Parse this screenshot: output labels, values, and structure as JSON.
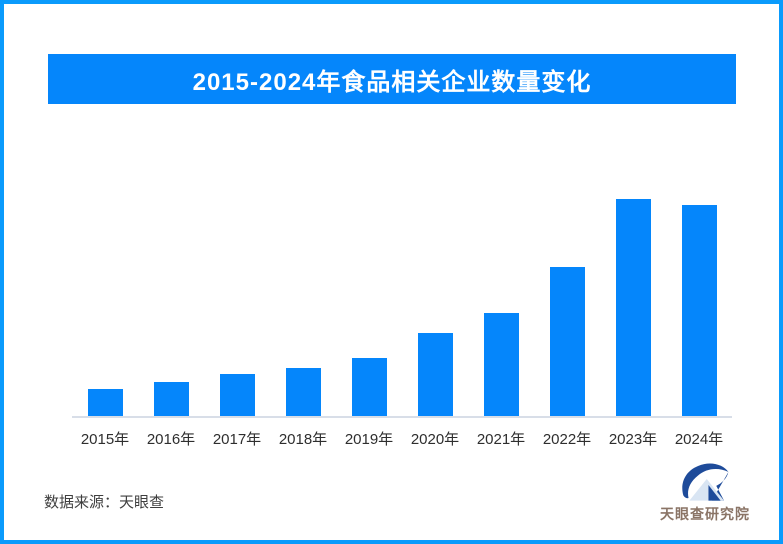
{
  "page": {
    "border_color": "#0a9bfc",
    "background": "#ffffff"
  },
  "header": {
    "title": "2015-2024年食品相关企业数量变化",
    "banner_color": "#0586fb",
    "title_color": "#ffffff"
  },
  "chart_data": {
    "type": "bar",
    "title": "2015-2024年食品相关企业数量变化",
    "categories": [
      "2015年",
      "2016年",
      "2017年",
      "2018年",
      "2019年",
      "2020年",
      "2021年",
      "2022年",
      "2023年",
      "2024年"
    ],
    "values": [
      12.8,
      16.1,
      19.7,
      22.5,
      27.1,
      38.5,
      47.7,
      68.8,
      100,
      97.2
    ],
    "value_note": "relative bar heights estimated from pixels, 2023 = 100; no numeric axis or data labels shown",
    "bar_color": "#0586fb",
    "axis_line_color": "#d8dee8",
    "xlabel": "",
    "ylabel": "",
    "ylim": [
      0,
      115
    ],
    "grid": false,
    "legend": false
  },
  "footer": {
    "source_label": "数据来源：天眼查",
    "logo_text": "天眼查研究院",
    "logo_mark": "tianyancha-eye-logo",
    "logo_mark_color": "#1e4b9a",
    "logo_mark_light_color": "#d9e5f3",
    "logo_text_color": "#8a7466"
  }
}
